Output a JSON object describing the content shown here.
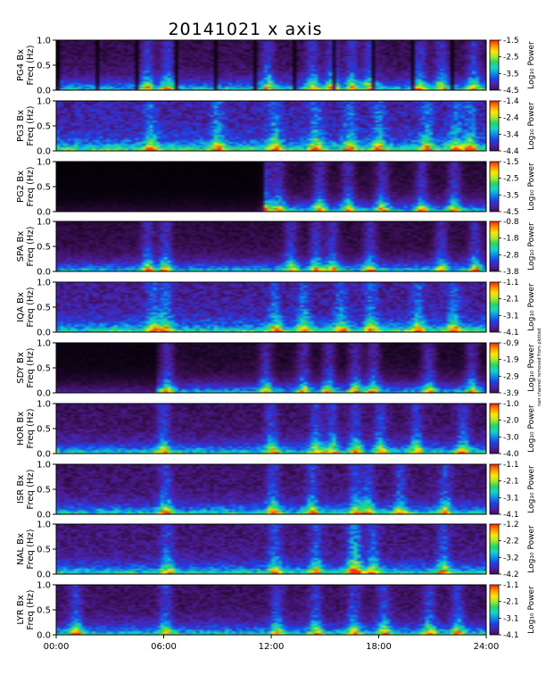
{
  "title": "20141021 x axis",
  "side_note": "nan channel removed from plotted",
  "chart_data": {
    "type": "heatmap",
    "title": "20141021 x axis",
    "x_ticks": [
      "00:00",
      "06:00",
      "12:00",
      "18:00",
      "24:00"
    ],
    "x_range_hours": [
      0,
      24
    ],
    "y_range_hz": [
      0,
      1.0
    ],
    "y_ticks": [
      "0.0",
      "0.5",
      "1.0"
    ],
    "colorbar_label": "Log₁₀ Power",
    "colormap": [
      "#000000",
      "#3c0f55",
      "#4b22a8",
      "#1f3fe6",
      "#0a8fe6",
      "#17d4cc",
      "#22d660",
      "#a8e82e",
      "#ffe600",
      "#ff9100",
      "#ff1e00"
    ],
    "panels": [
      {
        "station": "PG4 Bx",
        "ylabel": "Freq (Hz)",
        "color_range": [
          -4.5,
          -1.5
        ],
        "color_ticks": [
          "-1.5",
          "-2.5",
          "-3.5",
          "-4.5"
        ]
      },
      {
        "station": "PG3 Bx",
        "ylabel": "Freq (Hz)",
        "color_range": [
          -4.4,
          -1.4
        ],
        "color_ticks": [
          "-1.4",
          "-2.4",
          "-3.4",
          "-4.4"
        ]
      },
      {
        "station": "PG2 Bx",
        "ylabel": "Freq (Hz)",
        "color_range": [
          -4.5,
          -1.5
        ],
        "color_ticks": [
          "-1.5",
          "-2.5",
          "-3.5",
          "-4.5"
        ]
      },
      {
        "station": "SPA Bx",
        "ylabel": "Freq (Hz)",
        "color_range": [
          -3.8,
          -0.8
        ],
        "color_ticks": [
          "-0.8",
          "-1.8",
          "-2.8",
          "-3.8"
        ]
      },
      {
        "station": "IQA Bx",
        "ylabel": "Freq (Hz)",
        "color_range": [
          -4.1,
          -1.1
        ],
        "color_ticks": [
          "-1.1",
          "-2.1",
          "-3.1",
          "-4.1"
        ]
      },
      {
        "station": "SDY Bx",
        "ylabel": "Freq (Hz)",
        "color_range": [
          -3.9,
          -0.9
        ],
        "color_ticks": [
          "-0.9",
          "-1.9",
          "-2.9",
          "-3.9"
        ]
      },
      {
        "station": "HOR Bx",
        "ylabel": "Freq (Hz)",
        "color_range": [
          -4.0,
          -1.0
        ],
        "color_ticks": [
          "-1.0",
          "-2.0",
          "-3.0",
          "-4.0"
        ]
      },
      {
        "station": "ISR Bx",
        "ylabel": "Freq (Hz)",
        "color_range": [
          -4.1,
          -1.1
        ],
        "color_ticks": [
          "-1.1",
          "-2.1",
          "-3.1",
          "-4.1"
        ]
      },
      {
        "station": "NAL Bx",
        "ylabel": "Freq (Hz)",
        "color_range": [
          -4.2,
          -1.2
        ],
        "color_ticks": [
          "-1.2",
          "-2.2",
          "-3.2",
          "-4.2"
        ]
      },
      {
        "station": "LYR Bx",
        "ylabel": "Freq (Hz)",
        "color_range": [
          -4.1,
          -1.1
        ],
        "color_ticks": [
          "-1.1",
          "-2.1",
          "-3.1",
          "-4.1"
        ]
      }
    ]
  }
}
